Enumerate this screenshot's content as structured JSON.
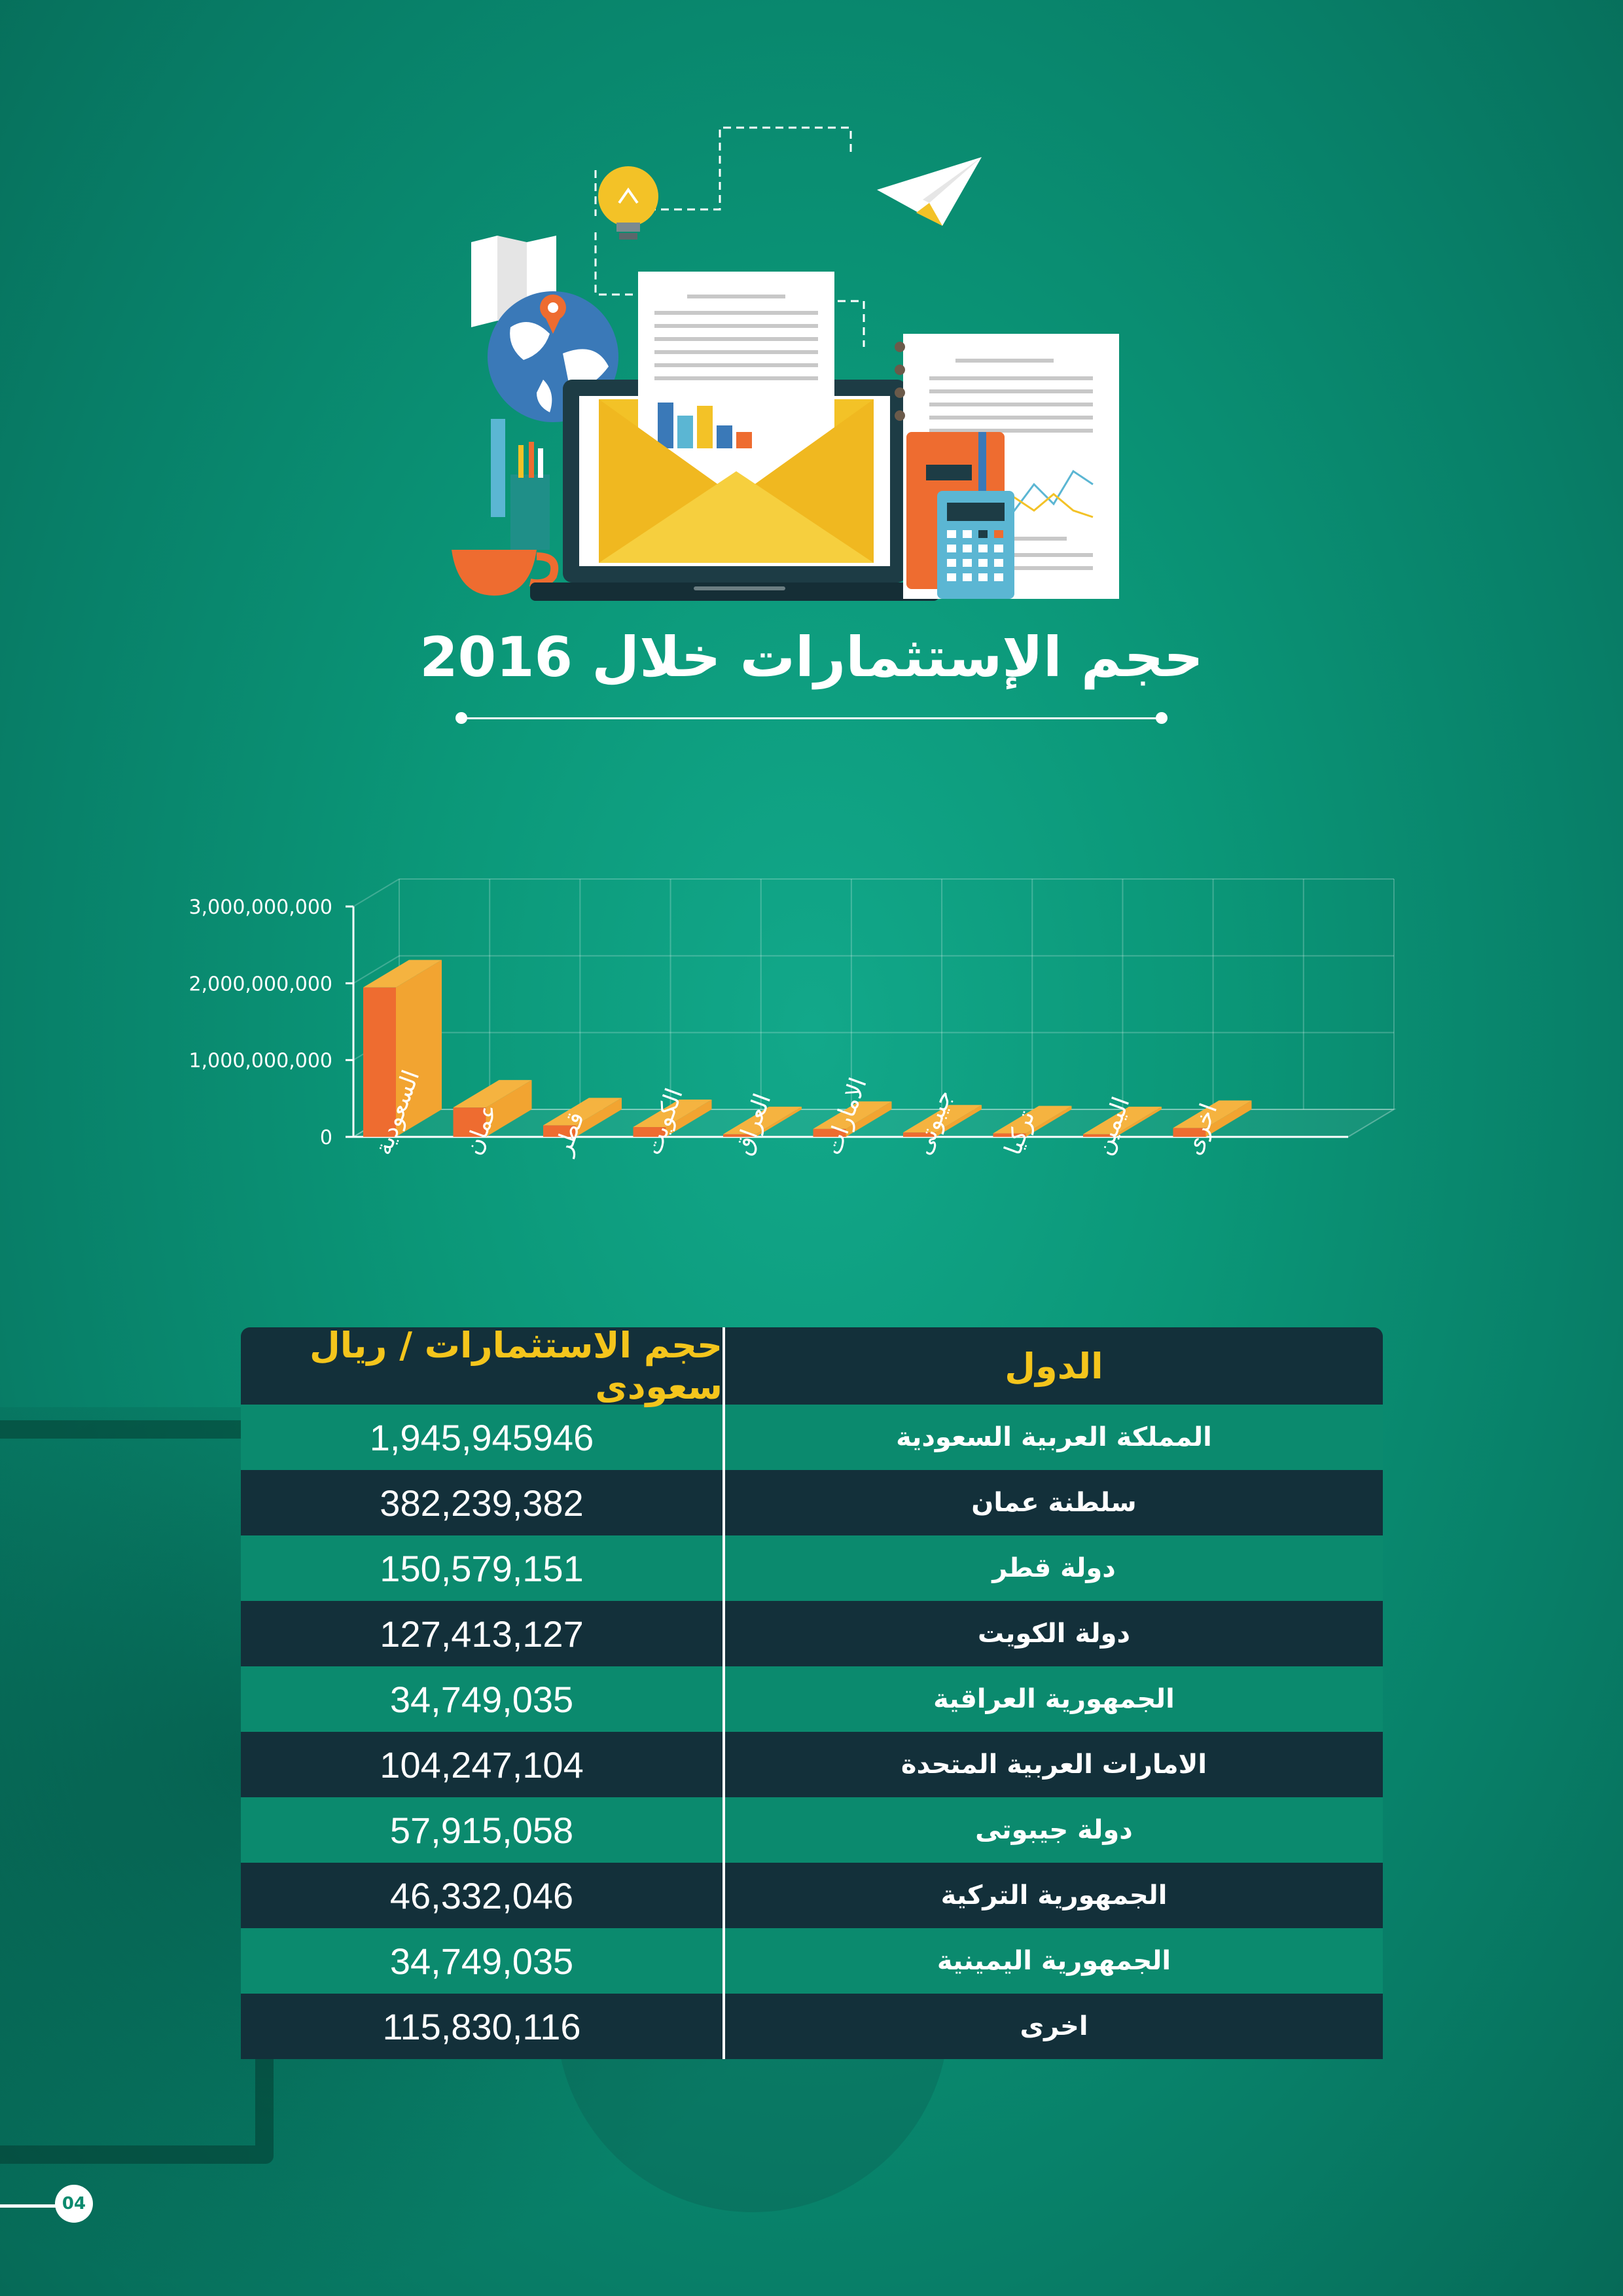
{
  "page": {
    "number": "04"
  },
  "header": {
    "title": "حجم الإستثمارات خلال 2016"
  },
  "table": {
    "headers": {
      "country": "الدول",
      "value": "حجم الاستثمارات / ريال سعودى"
    },
    "rows": [
      {
        "country": "المملكة العربية السعودية",
        "value": "1,945,945946"
      },
      {
        "country": "سلطنة عمان",
        "value": "382,239,382"
      },
      {
        "country": "دولة قطر",
        "value": "150,579,151"
      },
      {
        "country": "دولة الكويت",
        "value": "127,413,127"
      },
      {
        "country": "الجمهورية العراقية",
        "value": "34,749,035"
      },
      {
        "country": "الامارات العربية المتحدة",
        "value": "104,247,104"
      },
      {
        "country": "دولة جيبوتى",
        "value": "57,915,058"
      },
      {
        "country": "الجمهورية التركية",
        "value": "46,332,046"
      },
      {
        "country": "الجمهورية اليمينية",
        "value": "34,749,035"
      },
      {
        "country": "اخرى",
        "value": "115,830,116"
      }
    ]
  },
  "chart_data": {
    "type": "bar",
    "categories": [
      "السعودية",
      "عمان",
      "قطر",
      "الكويت",
      "العراق",
      "الامارات",
      "جيبوتى",
      "تركيا",
      "اليمين",
      "اخرى"
    ],
    "values": [
      1945945946,
      382239382,
      150579151,
      127413127,
      34749035,
      104247104,
      57915058,
      46332046,
      34749035,
      115830116
    ],
    "yticks": [
      "0",
      "1,000,000,000",
      "2,000,000,000",
      "3,000,000,000"
    ],
    "ylim": [
      0,
      3000000000
    ],
    "grid": true,
    "bar_front_color": "#ee6c30",
    "bar_side_color": "#f2a431",
    "bar_top_color": "#f5b340"
  }
}
